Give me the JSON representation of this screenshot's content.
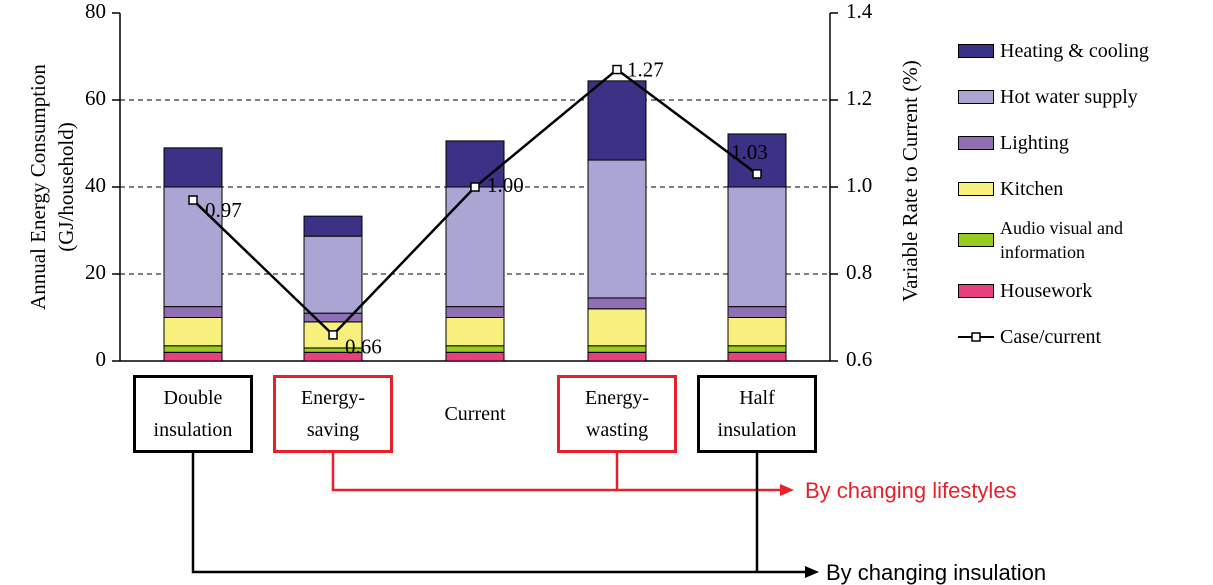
{
  "chart_data": {
    "type": "bar",
    "stacked": true,
    "y_label": [
      "Annual Energy Consumption",
      "(GJ/household)"
    ],
    "y2_label": "Variable Rate to Current (%)",
    "categories": [
      "Double insulation",
      "Energy-saving",
      "Current",
      "Energy-wasting",
      "Half insulation"
    ],
    "category_box_colors": [
      "#000000",
      "#e8202a",
      null,
      "#e8202a",
      "#000000"
    ],
    "ylim": [
      0,
      80
    ],
    "yticks": [
      0,
      20,
      40,
      60,
      80
    ],
    "y2lim": [
      0.6,
      1.4
    ],
    "y2ticks": [
      0.6,
      0.8,
      {
        "value": 1,
        "label": "1.0"
      },
      1.2,
      1.4
    ],
    "grid": true,
    "series": [
      {
        "name": "Housework",
        "color": "#e8407f",
        "values": [
          2,
          2,
          2,
          2,
          2
        ]
      },
      {
        "name": "Audio visual and information",
        "color": "#99cc22",
        "values": [
          1.5,
          1,
          1.5,
          1.5,
          1.5
        ]
      },
      {
        "name": "Kitchen",
        "color": "#f7f07c",
        "values": [
          6.5,
          6,
          6.5,
          8.5,
          6.5
        ]
      },
      {
        "name": "Lighting",
        "color": "#9070b4",
        "values": [
          2.5,
          2,
          2.5,
          2.5,
          2.5
        ]
      },
      {
        "name": "Hot water supply",
        "color": "#aaa5d3",
        "values": [
          27.5,
          17.7,
          27.5,
          31.7,
          27.5
        ]
      },
      {
        "name": "Heating & cooling",
        "color": "#3b3286",
        "values": [
          9,
          4.6,
          10.6,
          18.2,
          12.2
        ]
      },
      {
        "name": "Case/current",
        "type": "line",
        "axis": "y2",
        "color": "#000000",
        "values": [
          0.97,
          0.66,
          1,
          1.27,
          1.03
        ],
        "value_labels": [
          "0.97",
          "0.66",
          "1.00",
          "1.27",
          "1.03"
        ]
      }
    ],
    "annotations": [
      {
        "text": "By changing lifestyles",
        "color": "#e8202a"
      },
      {
        "text": "By changing insulation",
        "color": "#000000"
      }
    ]
  }
}
